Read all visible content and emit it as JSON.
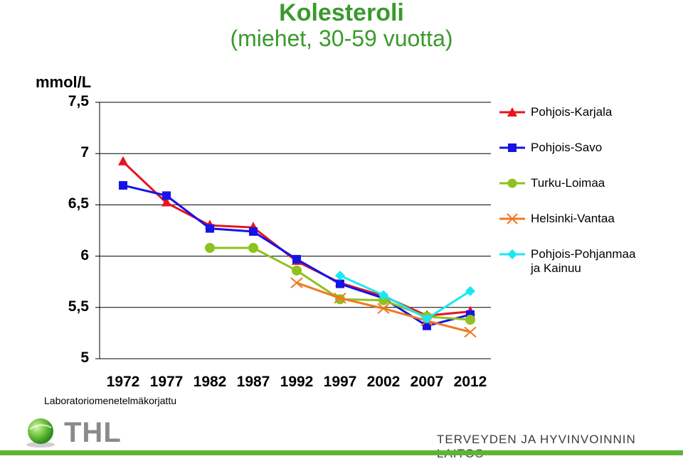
{
  "chart_data": {
    "type": "line",
    "title": "Kolesteroli",
    "subtitle": "(miehet, 30-59 vuotta)",
    "ylabel": "mmol/L",
    "ylim": [
      5,
      7.5
    ],
    "yticks": [
      "7,5",
      "7",
      "6,5",
      "6",
      "5,5",
      "5"
    ],
    "ytick_values": [
      7.5,
      7,
      6.5,
      6,
      5.5,
      5
    ],
    "x": [
      "1972",
      "1977",
      "1982",
      "1987",
      "1992",
      "1997",
      "2002",
      "2007",
      "2012"
    ],
    "grid": true,
    "legend_position": "right",
    "series": [
      {
        "name": "Pohjois-Karjala",
        "color": "#e8141e",
        "marker": "triangle",
        "values": [
          6.92,
          6.52,
          6.3,
          6.28,
          5.95,
          5.74,
          5.61,
          5.42,
          5.46
        ]
      },
      {
        "name": "Pohjois-Savo",
        "color": "#1414e6",
        "marker": "square",
        "values": [
          6.69,
          6.59,
          6.27,
          6.24,
          5.97,
          5.73,
          5.59,
          5.32,
          5.43
        ]
      },
      {
        "name": "Turku-Loimaa",
        "color": "#8ec21e",
        "marker": "circle",
        "values": [
          null,
          null,
          6.08,
          6.08,
          5.86,
          5.58,
          5.57,
          5.41,
          5.38
        ]
      },
      {
        "name": "Helsinki-Vantaa",
        "color": "#f07820",
        "marker": "x",
        "values": [
          null,
          null,
          null,
          null,
          5.74,
          5.59,
          5.49,
          5.37,
          5.26
        ]
      },
      {
        "name": "Pohjois-Pohjanmaa ja Kainuu",
        "color": "#19e8f0",
        "marker": "diamond",
        "values": [
          null,
          null,
          null,
          null,
          null,
          5.81,
          5.62,
          5.39,
          5.66
        ]
      }
    ]
  },
  "legend_labels": [
    "Pohjois-Karjala",
    "Pohjois-Savo",
    "Turku-Loimaa",
    "Helsinki-Vantaa",
    "Pohjois-Pohjanmaa",
    "ja Kainuu"
  ],
  "note": "Laboratoriomenetelmäkorjattu",
  "logo": {
    "text": "THL"
  },
  "organization": "TERVEYDEN JA HYVINVOINNIN LAITOS",
  "colors": {
    "title": "#3a9a2c",
    "bar": "#5cb533"
  }
}
